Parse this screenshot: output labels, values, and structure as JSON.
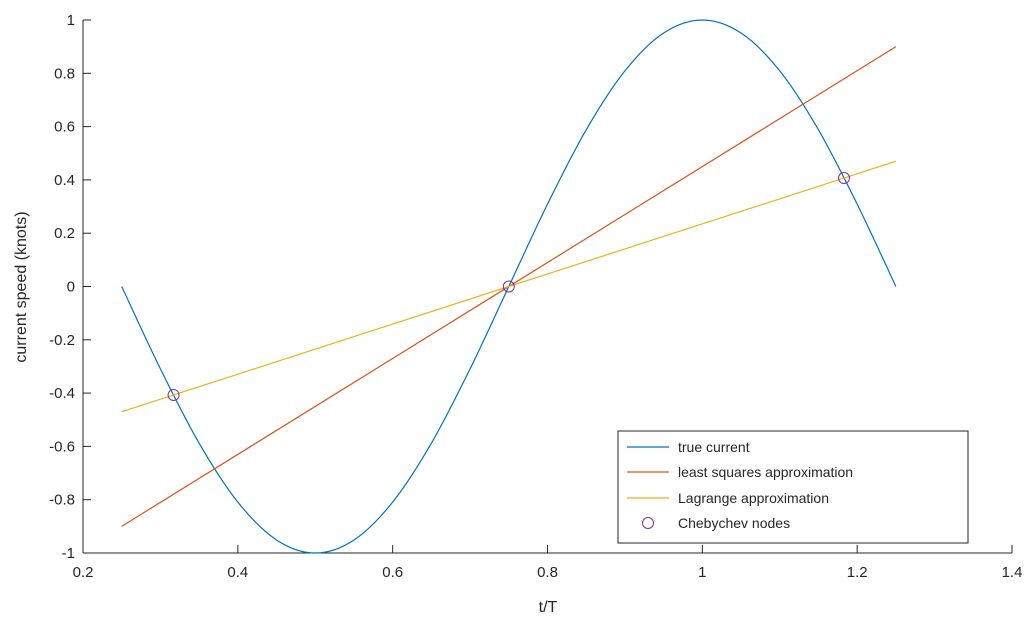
{
  "chart_data": {
    "type": "line",
    "xlabel": "t/T",
    "ylabel": "current speed (knots)",
    "xlim": [
      0.2,
      1.4
    ],
    "ylim": [
      -1,
      1
    ],
    "xticks": [
      "0.2",
      "0.4",
      "0.6",
      "0.8",
      "1",
      "1.2",
      "1.4"
    ],
    "yticks": [
      "1",
      "0.8",
      "0.6",
      "0.4",
      "0.2",
      "0",
      "-0.2",
      "-0.4",
      "-0.6",
      "-0.8",
      "-1"
    ],
    "grid": false,
    "legend_position": "bottom-right",
    "series": [
      {
        "name": "true current",
        "color": "#0072BD",
        "x": [
          0.25,
          0.3,
          0.35,
          0.4,
          0.45,
          0.5,
          0.55,
          0.6,
          0.65,
          0.7,
          0.75,
          0.8,
          0.85,
          0.9,
          0.95,
          1.0,
          1.05,
          1.1,
          1.15,
          1.2,
          1.25
        ],
        "y": [
          0.0,
          -0.309,
          -0.588,
          -0.809,
          -0.951,
          -1.0,
          -0.951,
          -0.809,
          -0.588,
          -0.309,
          0.0,
          0.309,
          0.588,
          0.809,
          0.951,
          1.0,
          0.951,
          0.809,
          0.588,
          0.309,
          0.0
        ]
      },
      {
        "name": "least squares approximation",
        "color": "#D95319",
        "x": [
          0.25,
          1.25
        ],
        "y": [
          -0.9,
          0.9
        ]
      },
      {
        "name": "Lagrange approximation",
        "color": "#EDB120",
        "x": [
          0.25,
          1.25
        ],
        "y": [
          -0.47,
          0.47
        ]
      },
      {
        "name": "Chebychev nodes",
        "color": "#7E2F8E",
        "marker": "circle",
        "x": [
          0.317,
          0.75,
          1.183
        ],
        "y": [
          -0.407,
          0.0,
          0.407
        ]
      }
    ]
  }
}
